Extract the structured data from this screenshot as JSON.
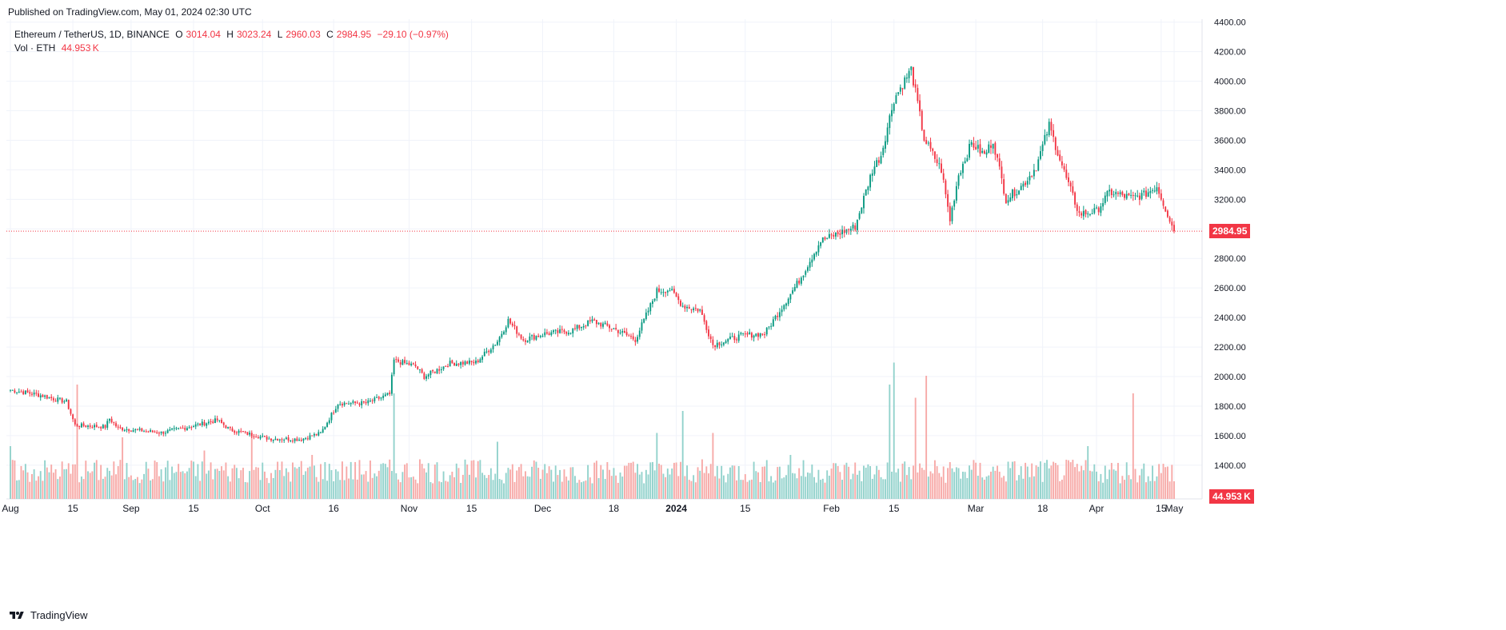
{
  "published": "Published on TradingView.com, May 01, 2024 02:30 UTC",
  "legend": {
    "symbol": "Ethereum / TetherUS, 1D, BINANCE",
    "open_label": "O",
    "open": "3014.04",
    "high_label": "H",
    "high": "3023.24",
    "low_label": "L",
    "low": "2960.03",
    "close_label": "C",
    "close": "2984.95",
    "change": "−29.10 (−0.97%)",
    "vol_label": "Vol · ETH",
    "vol_value": "44.953 K"
  },
  "footer": {
    "brand": "TradingView",
    "logo_icon": "tradingview-logo-icon"
  },
  "colors": {
    "up": "#089981",
    "down": "#f23645",
    "up_vol": "#92d2cc",
    "down_vol": "#f7a9a7",
    "grid": "#f0f3fa",
    "axis_text": "#131722"
  },
  "chart_data": {
    "type": "candlestick",
    "symbol": "ETHUSDT",
    "interval": "1D",
    "price_axis": {
      "ticks": [
        "4400.00",
        "4200.00",
        "4000.00",
        "3800.00",
        "3600.00",
        "3400.00",
        "3200.00",
        "3000.00",
        "2800.00",
        "2600.00",
        "2400.00",
        "2200.00",
        "2000.00",
        "1800.00",
        "1600.00",
        "1400.00"
      ],
      "ylim": [
        1280,
        4420
      ]
    },
    "time_axis": {
      "labels": [
        "Aug",
        "15",
        "Sep",
        "15",
        "Oct",
        "16",
        "Nov",
        "15",
        "Dec",
        "18",
        "2024",
        "15",
        "Feb",
        "15",
        "Mar",
        "18",
        "Apr",
        "15",
        "May"
      ]
    },
    "last_price": "2984.95",
    "last_volume": "44.953 K",
    "anchors": [
      [
        0,
        1910
      ],
      [
        8,
        1890
      ],
      [
        15,
        1870
      ],
      [
        20,
        1850
      ],
      [
        26,
        1830
      ],
      [
        30,
        1670
      ],
      [
        44,
        1660
      ],
      [
        46,
        1715
      ],
      [
        50,
        1650
      ],
      [
        70,
        1620
      ],
      [
        80,
        1650
      ],
      [
        96,
        1705
      ],
      [
        102,
        1640
      ],
      [
        120,
        1580
      ],
      [
        135,
        1575
      ],
      [
        140,
        1600
      ],
      [
        144,
        1615
      ],
      [
        152,
        1820
      ],
      [
        165,
        1820
      ],
      [
        176,
        1880
      ],
      [
        178,
        2110
      ],
      [
        188,
        2070
      ],
      [
        192,
        2000
      ],
      [
        204,
        2090
      ],
      [
        216,
        2095
      ],
      [
        226,
        2240
      ],
      [
        231,
        2380
      ],
      [
        238,
        2250
      ],
      [
        248,
        2290
      ],
      [
        260,
        2310
      ],
      [
        270,
        2375
      ],
      [
        280,
        2325
      ],
      [
        290,
        2250
      ],
      [
        300,
        2580
      ],
      [
        306,
        2590
      ],
      [
        312,
        2480
      ],
      [
        320,
        2450
      ],
      [
        326,
        2215
      ],
      [
        340,
        2280
      ],
      [
        350,
        2290
      ],
      [
        366,
        2650
      ],
      [
        376,
        2920
      ],
      [
        392,
        3015
      ],
      [
        400,
        3400
      ],
      [
        404,
        3500
      ],
      [
        410,
        3880
      ],
      [
        418,
        4080
      ],
      [
        424,
        3610
      ],
      [
        432,
        3400
      ],
      [
        436,
        3060
      ],
      [
        440,
        3370
      ],
      [
        446,
        3580
      ],
      [
        452,
        3500
      ],
      [
        456,
        3600
      ],
      [
        462,
        3200
      ],
      [
        470,
        3300
      ],
      [
        476,
        3420
      ],
      [
        482,
        3700
      ],
      [
        490,
        3340
      ],
      [
        496,
        3100
      ],
      [
        504,
        3120
      ],
      [
        510,
        3250
      ],
      [
        520,
        3210
      ],
      [
        526,
        3230
      ],
      [
        532,
        3290
      ],
      [
        540,
        2984.95
      ]
    ],
    "volume_spikes": [
      [
        0,
        1.2
      ],
      [
        31,
        2.6
      ],
      [
        52,
        1.4
      ],
      [
        90,
        1.1
      ],
      [
        112,
        1.5
      ],
      [
        140,
        1.0
      ],
      [
        178,
        2.4
      ],
      [
        190,
        0.9
      ],
      [
        226,
        1.3
      ],
      [
        300,
        1.5
      ],
      [
        312,
        2.0
      ],
      [
        326,
        1.5
      ],
      [
        362,
        1.0
      ],
      [
        408,
        2.6
      ],
      [
        410,
        3.1
      ],
      [
        420,
        2.3
      ],
      [
        425,
        2.8
      ],
      [
        500,
        1.2
      ],
      [
        521,
        2.4
      ],
      [
        540,
        0.4
      ]
    ],
    "n_days": 541
  }
}
